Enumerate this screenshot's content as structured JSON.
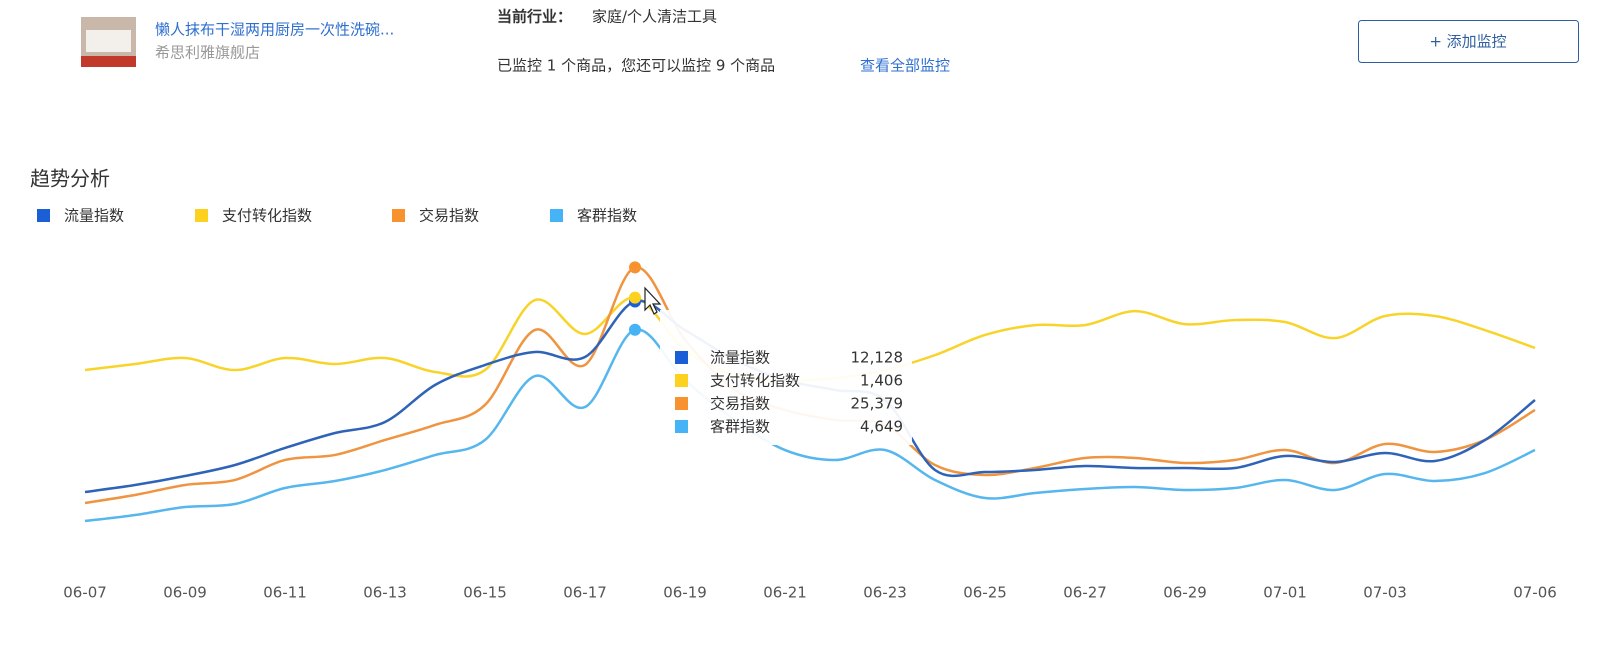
{
  "header": {
    "product_title": "懒人抹布干湿两用厨房一次性洗碗...",
    "shop": "希思利雅旗舰店",
    "industry_label": "当前行业：",
    "industry": "家庭/个人清洁工具",
    "monitor_status": "已监控 1 个商品，您还可以监控 9 个商品",
    "monitor_link": "查看全部监控",
    "add_button": "+ 添加监控"
  },
  "chart_data": {
    "type": "line",
    "title": "趋势分析",
    "categories": [
      "06-07",
      null,
      "06-09",
      null,
      "06-11",
      null,
      "06-13",
      null,
      "06-15",
      null,
      "06-17",
      null,
      "06-19",
      null,
      "06-21",
      null,
      "06-23",
      null,
      "06-25",
      null,
      "06-27",
      null,
      "06-29",
      null,
      "07-01",
      null,
      "07-03",
      null,
      null,
      "07-06"
    ],
    "series": [
      {
        "name": "流量指数",
        "color": "#2e63b8",
        "legend_color": "#1a5fd6",
        "ylim": [
          0,
          14000
        ],
        "values": [
          3522,
          3839,
          4245,
          4742,
          5510,
          6187,
          6684,
          8355,
          9258,
          9845,
          9619,
          12128,
          10838,
          9484,
          8580,
          8129,
          7677,
          4516,
          4426,
          4516,
          4697,
          4606,
          4606,
          4606,
          5148,
          4877,
          5284,
          4922,
          5871,
          7677
        ]
      },
      {
        "name": "支付转化指数",
        "color": "#f8d42a",
        "legend_color": "#fcd21f",
        "ylim": [
          0,
          1600
        ],
        "values": [
          1032,
          1063,
          1094,
          1032,
          1094,
          1063,
          1094,
          1022,
          1032,
          1393,
          1218,
          1406,
          1135,
          1006,
          980,
          991,
          1032,
          1109,
          1213,
          1264,
          1264,
          1336,
          1269,
          1290,
          1280,
          1197,
          1311,
          1311,
          1238,
          1146
        ]
      },
      {
        "name": "交易指数",
        "color": "#ef9440",
        "legend_color": "#f7922f",
        "ylim": [
          0,
          26000
        ],
        "values": [
          5621,
          6293,
          7132,
          7551,
          9229,
          9649,
          10907,
          12166,
          13844,
          20136,
          17200,
          25379,
          19297,
          15102,
          13424,
          12585,
          12166,
          8810,
          7971,
          8558,
          9397,
          9397,
          8977,
          9229,
          10068,
          8977,
          10571,
          9900,
          10907,
          13424
        ]
      },
      {
        "name": "客群指数",
        "color": "#56b6ee",
        "legend_color": "#45b3f5",
        "ylim": [
          0,
          6000
        ],
        "values": [
          948,
          1064,
          1219,
          1277,
          1587,
          1722,
          1935,
          2225,
          2516,
          3754,
          3154,
          4649,
          3677,
          2903,
          2322,
          2129,
          2322,
          1742,
          1393,
          1490,
          1567,
          1606,
          1548,
          1587,
          1742,
          1548,
          1858,
          1722,
          1877,
          2322
        ]
      }
    ],
    "tooltip": {
      "index": 11,
      "value_labels": [
        "12,128",
        "1,406",
        "25,379",
        "4,649"
      ]
    }
  }
}
